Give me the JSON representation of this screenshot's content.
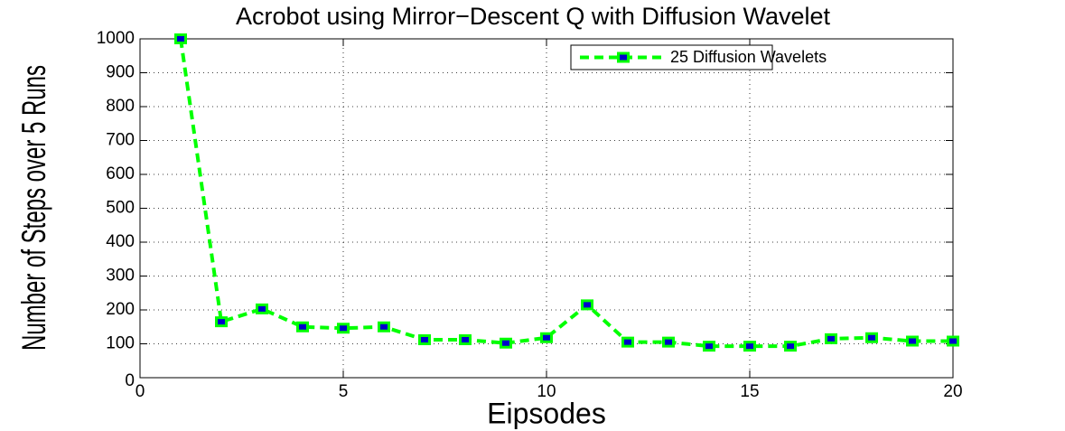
{
  "chart_data": {
    "type": "line",
    "title": "Acrobot using Mirror−Descent Q with Diffusion Wavelet",
    "x_label": "Eipsodes",
    "y_label": "Number of Steps over 5 Runs",
    "x": [
      1,
      2,
      3,
      4,
      5,
      6,
      7,
      8,
      9,
      10,
      11,
      12,
      13,
      14,
      15,
      16,
      17,
      18,
      19,
      20
    ],
    "series": [
      {
        "name": "25 Diffusion Wavelets",
        "color": "#00ff00",
        "marker_color": "#0000cc",
        "values": [
          1000,
          165,
          203,
          150,
          146,
          150,
          112,
          112,
          102,
          118,
          215,
          105,
          105,
          93,
          93,
          93,
          115,
          118,
          108,
          108
        ]
      }
    ],
    "xlim": [
      0,
      20
    ],
    "xticks": [
      0,
      5,
      10,
      15,
      20
    ],
    "ylim": [
      0,
      1000
    ],
    "yticks": [
      0,
      100,
      200,
      300,
      400,
      500,
      600,
      700,
      800,
      900,
      1000
    ],
    "grid": true,
    "legend": "upper right"
  }
}
